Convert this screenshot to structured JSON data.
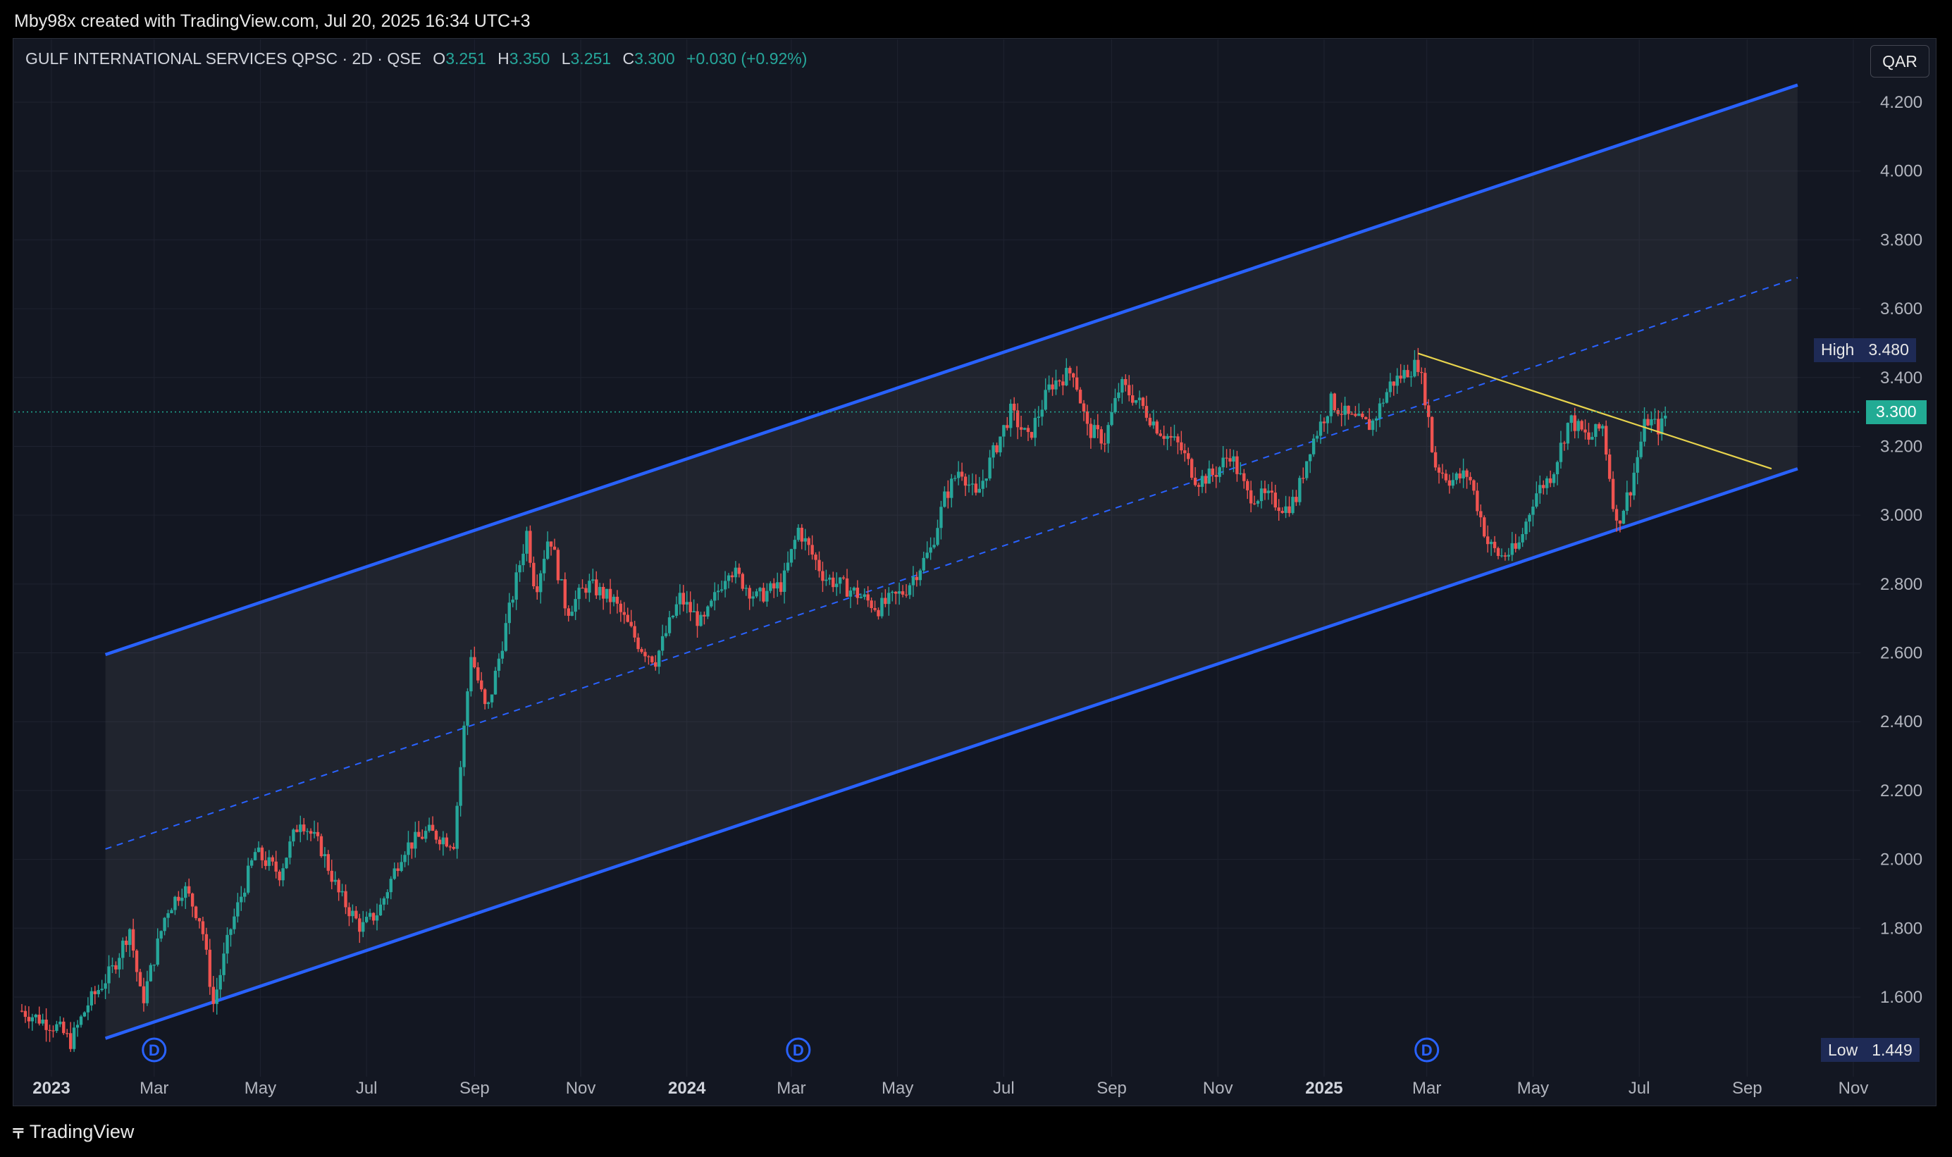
{
  "header": {
    "credit": "Mby98x created with TradingView.com, Jul 20, 2025 16:34 UTC+3"
  },
  "legend": {
    "symbol": "GULF INTERNATIONAL SERVICES QPSC · 2D · QSE",
    "o_label": "O",
    "o": "3.251",
    "h_label": "H",
    "h": "3.350",
    "l_label": "L",
    "l": "3.251",
    "c_label": "C",
    "c": "3.300",
    "change": "+0.030 (+0.92%)"
  },
  "currency": "QAR",
  "badges": {
    "high_label": "High",
    "high_value": "3.480",
    "last_value": "3.300",
    "low_label": "Low",
    "low_value": "1.449"
  },
  "footer": {
    "brand": "TradingView"
  },
  "colors": {
    "background": "#131722",
    "up": "#26a69a",
    "down": "#ef5350",
    "channel": "#2962ff",
    "trendline": "#e8d44d",
    "last_price": "#22ab94"
  },
  "chart_data": {
    "type": "candlestick",
    "interval": "2D",
    "currency": "QAR",
    "ylim": [
      1.43,
      4.28
    ],
    "y_ticks": [
      "4.200",
      "4.000",
      "3.800",
      "3.600",
      "3.400",
      "3.200",
      "3.000",
      "2.800",
      "2.600",
      "2.400",
      "2.200",
      "2.000",
      "1.800",
      "1.600"
    ],
    "x_ticks": [
      {
        "label": "2023",
        "date": "2023-01-01",
        "bold": true
      },
      {
        "label": "Mar",
        "date": "2023-03-01"
      },
      {
        "label": "May",
        "date": "2023-05-01"
      },
      {
        "label": "Jul",
        "date": "2023-07-01"
      },
      {
        "label": "Sep",
        "date": "2023-09-01"
      },
      {
        "label": "Nov",
        "date": "2023-11-01"
      },
      {
        "label": "2024",
        "date": "2024-01-01",
        "bold": true
      },
      {
        "label": "Mar",
        "date": "2024-03-01"
      },
      {
        "label": "May",
        "date": "2024-05-01"
      },
      {
        "label": "Jul",
        "date": "2024-07-01"
      },
      {
        "label": "Sep",
        "date": "2024-09-01"
      },
      {
        "label": "Nov",
        "date": "2024-11-01"
      },
      {
        "label": "2025",
        "date": "2025-01-01",
        "bold": true
      },
      {
        "label": "Mar",
        "date": "2025-03-01"
      },
      {
        "label": "May",
        "date": "2025-05-01"
      },
      {
        "label": "Jul",
        "date": "2025-07-01"
      },
      {
        "label": "Sep",
        "date": "2025-09-01"
      },
      {
        "label": "Nov",
        "date": "2025-11-01"
      }
    ],
    "price_path": [
      [
        "2022-12-15",
        1.56
      ],
      [
        "2023-01-05",
        1.51
      ],
      [
        "2023-01-12",
        1.47
      ],
      [
        "2023-01-22",
        1.58
      ],
      [
        "2023-02-05",
        1.68
      ],
      [
        "2023-02-15",
        1.8
      ],
      [
        "2023-02-22",
        1.58
      ],
      [
        "2023-03-08",
        1.85
      ],
      [
        "2023-03-18",
        1.92
      ],
      [
        "2023-03-28",
        1.82
      ],
      [
        "2023-04-04",
        1.58
      ],
      [
        "2023-04-14",
        1.8
      ],
      [
        "2023-04-28",
        2.02
      ],
      [
        "2023-05-12",
        1.96
      ],
      [
        "2023-05-24",
        2.12
      ],
      [
        "2023-06-05",
        2.03
      ],
      [
        "2023-06-15",
        1.9
      ],
      [
        "2023-06-28",
        1.8
      ],
      [
        "2023-07-08",
        1.85
      ],
      [
        "2023-07-22",
        2.03
      ],
      [
        "2023-08-05",
        2.08
      ],
      [
        "2023-08-20",
        2.05
      ],
      [
        "2023-08-30",
        2.6
      ],
      [
        "2023-09-08",
        2.42
      ],
      [
        "2023-09-20",
        2.7
      ],
      [
        "2023-10-01",
        2.95
      ],
      [
        "2023-10-06",
        2.78
      ],
      [
        "2023-10-14",
        2.95
      ],
      [
        "2023-10-24",
        2.72
      ],
      [
        "2023-11-05",
        2.8
      ],
      [
        "2023-11-20",
        2.75
      ],
      [
        "2023-12-05",
        2.62
      ],
      [
        "2023-12-14",
        2.58
      ],
      [
        "2023-12-28",
        2.76
      ],
      [
        "2024-01-10",
        2.68
      ],
      [
        "2024-01-25",
        2.85
      ],
      [
        "2024-02-10",
        2.76
      ],
      [
        "2024-02-25",
        2.8
      ],
      [
        "2024-03-05",
        2.96
      ],
      [
        "2024-03-20",
        2.82
      ],
      [
        "2024-04-05",
        2.78
      ],
      [
        "2024-04-20",
        2.73
      ],
      [
        "2024-05-05",
        2.78
      ],
      [
        "2024-05-20",
        2.9
      ],
      [
        "2024-05-28",
        3.05
      ],
      [
        "2024-06-06",
        3.14
      ],
      [
        "2024-06-15",
        3.05
      ],
      [
        "2024-06-25",
        3.18
      ],
      [
        "2024-07-05",
        3.3
      ],
      [
        "2024-07-15",
        3.22
      ],
      [
        "2024-07-28",
        3.38
      ],
      [
        "2024-08-10",
        3.42
      ],
      [
        "2024-08-18",
        3.25
      ],
      [
        "2024-08-28",
        3.22
      ],
      [
        "2024-09-06",
        3.38
      ],
      [
        "2024-09-18",
        3.32
      ],
      [
        "2024-09-28",
        3.25
      ],
      [
        "2024-10-10",
        3.2
      ],
      [
        "2024-10-20",
        3.1
      ],
      [
        "2024-10-30",
        3.12
      ],
      [
        "2024-11-08",
        3.18
      ],
      [
        "2024-11-18",
        3.06
      ],
      [
        "2024-11-30",
        3.05
      ],
      [
        "2024-12-10",
        3.02
      ],
      [
        "2024-12-16",
        3.05
      ],
      [
        "2024-12-24",
        3.2
      ],
      [
        "2025-01-05",
        3.33
      ],
      [
        "2025-01-16",
        3.28
      ],
      [
        "2025-01-28",
        3.26
      ],
      [
        "2025-02-08",
        3.38
      ],
      [
        "2025-02-18",
        3.42
      ],
      [
        "2025-02-24",
        3.44
      ],
      [
        "2025-03-01",
        3.32
      ],
      [
        "2025-03-05",
        3.15
      ],
      [
        "2025-03-15",
        3.1
      ],
      [
        "2025-03-25",
        3.12
      ],
      [
        "2025-04-05",
        2.92
      ],
      [
        "2025-04-12",
        2.88
      ],
      [
        "2025-04-22",
        2.9
      ],
      [
        "2025-05-02",
        3.06
      ],
      [
        "2025-05-12",
        3.12
      ],
      [
        "2025-05-22",
        3.28
      ],
      [
        "2025-06-02",
        3.22
      ],
      [
        "2025-06-10",
        3.26
      ],
      [
        "2025-06-18",
        2.97
      ],
      [
        "2025-06-26",
        3.08
      ],
      [
        "2025-07-05",
        3.28
      ],
      [
        "2025-07-13",
        3.25
      ],
      [
        "2025-07-17",
        3.3
      ]
    ],
    "channel": {
      "upper": [
        [
          "2023-02-01",
          2.595
        ],
        [
          "2025-09-30",
          4.25
        ]
      ],
      "middle": [
        [
          "2023-02-01",
          2.03
        ],
        [
          "2025-09-30",
          3.69
        ]
      ],
      "lower": [
        [
          "2023-02-01",
          1.48
        ],
        [
          "2025-09-30",
          3.135
        ]
      ]
    },
    "trendline": [
      [
        "2025-02-24",
        3.47
      ],
      [
        "2025-09-15",
        3.135
      ]
    ],
    "dividends": [
      "2023-03-01",
      "2024-03-05",
      "2025-03-01"
    ],
    "high": 3.48,
    "low": 1.449,
    "last": 3.3
  }
}
